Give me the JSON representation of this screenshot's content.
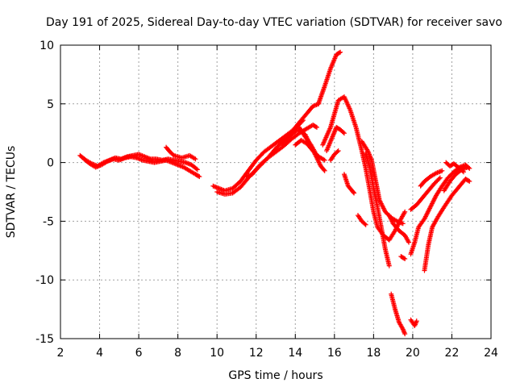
{
  "chart_data": {
    "type": "scatter",
    "title": "Day 191 of 2025, Sidereal Day-to-day VTEC variation (SDTVAR) for receiver savo",
    "xlabel": "GPS time / hours",
    "ylabel": "SDTVAR / TECUs",
    "xlim": [
      2,
      24
    ],
    "ylim": [
      -15,
      10
    ],
    "x_ticks": [
      2,
      4,
      6,
      8,
      10,
      12,
      14,
      16,
      18,
      20,
      22,
      24
    ],
    "y_ticks": [
      -15,
      -10,
      -5,
      0,
      5,
      10
    ],
    "x_tick_labels": [
      "2",
      "4",
      "6",
      "8",
      "10",
      "12",
      "14",
      "16",
      "18",
      "20",
      "22",
      "24"
    ],
    "y_tick_labels": [
      "-15",
      "-10",
      "-5",
      "0",
      "5",
      "10"
    ],
    "grid": true,
    "marker": "+",
    "color": "#ff0000",
    "series": [
      {
        "name": "SDTVAR",
        "segments": [
          [
            [
              3.0,
              0.6
            ],
            [
              3.3,
              0.2
            ],
            [
              3.6,
              -0.1
            ],
            [
              3.9,
              -0.3
            ],
            [
              4.2,
              0.0
            ],
            [
              4.5,
              0.2
            ],
            [
              4.8,
              0.4
            ],
            [
              5.1,
              0.3
            ],
            [
              5.4,
              0.5
            ],
            [
              5.7,
              0.6
            ],
            [
              6.0,
              0.7
            ],
            [
              6.3,
              0.5
            ],
            [
              6.6,
              0.3
            ],
            [
              6.9,
              0.3
            ],
            [
              7.2,
              0.2
            ],
            [
              7.5,
              0.3
            ],
            [
              7.8,
              0.2
            ],
            [
              8.1,
              0.1
            ],
            [
              8.4,
              0.0
            ],
            [
              8.7,
              -0.2
            ],
            [
              9.0,
              -0.6
            ]
          ],
          [
            [
              3.2,
              0.3
            ],
            [
              3.5,
              -0.1
            ],
            [
              3.8,
              -0.4
            ],
            [
              4.1,
              -0.2
            ],
            [
              4.4,
              0.1
            ],
            [
              4.7,
              0.3
            ],
            [
              5.0,
              0.2
            ],
            [
              5.3,
              0.4
            ],
            [
              5.6,
              0.5
            ],
            [
              5.9,
              0.4
            ],
            [
              6.2,
              0.2
            ],
            [
              6.5,
              0.1
            ],
            [
              6.8,
              0.0
            ],
            [
              7.1,
              0.1
            ],
            [
              7.4,
              0.2
            ],
            [
              7.7,
              0.0
            ],
            [
              8.0,
              -0.2
            ],
            [
              8.3,
              -0.4
            ],
            [
              8.6,
              -0.7
            ],
            [
              8.9,
              -1.0
            ],
            [
              9.1,
              -1.2
            ]
          ],
          [
            [
              7.4,
              1.3
            ],
            [
              7.6,
              0.9
            ],
            [
              7.8,
              0.6
            ],
            [
              8.2,
              0.4
            ],
            [
              8.6,
              0.6
            ],
            [
              8.9,
              0.3
            ]
          ],
          [
            [
              9.8,
              -2.0
            ],
            [
              10.1,
              -2.2
            ],
            [
              10.4,
              -2.4
            ],
            [
              10.8,
              -2.2
            ],
            [
              11.2,
              -1.6
            ],
            [
              11.6,
              -0.7
            ],
            [
              12.0,
              0.2
            ],
            [
              12.4,
              0.9
            ],
            [
              12.8,
              1.4
            ],
            [
              13.2,
              1.9
            ],
            [
              13.6,
              2.4
            ],
            [
              14.0,
              2.9
            ],
            [
              14.4,
              3.6
            ]
          ],
          [
            [
              10.0,
              -2.5
            ],
            [
              10.4,
              -2.7
            ],
            [
              10.8,
              -2.6
            ],
            [
              11.2,
              -2.1
            ],
            [
              11.6,
              -1.3
            ],
            [
              12.0,
              -0.6
            ],
            [
              12.3,
              -0.1
            ],
            [
              12.6,
              0.4
            ],
            [
              13.0,
              0.9
            ],
            [
              13.4,
              1.4
            ],
            [
              13.8,
              2.0
            ],
            [
              14.2,
              2.5
            ],
            [
              14.6,
              2.9
            ],
            [
              14.9,
              3.2
            ],
            [
              15.1,
              3.0
            ]
          ],
          [
            [
              11.5,
              -1.2
            ],
            [
              11.8,
              -1.0
            ],
            [
              12.2,
              -0.2
            ],
            [
              12.6,
              0.4
            ],
            [
              13.0,
              1.2
            ],
            [
              13.4,
              1.9
            ],
            [
              13.8,
              2.6
            ],
            [
              14.2,
              3.4
            ],
            [
              14.6,
              4.2
            ],
            [
              14.9,
              4.8
            ],
            [
              15.2,
              5.0
            ]
          ],
          [
            [
              13.3,
              1.6
            ],
            [
              13.7,
              2.2
            ],
            [
              14.1,
              2.8
            ],
            [
              14.5,
              2.4
            ],
            [
              14.8,
              1.4
            ],
            [
              15.1,
              0.4
            ],
            [
              15.3,
              -0.3
            ],
            [
              15.5,
              -0.7
            ]
          ],
          [
            [
              14.0,
              1.5
            ],
            [
              14.3,
              1.9
            ],
            [
              14.6,
              1.6
            ],
            [
              14.9,
              1.0
            ],
            [
              15.2,
              0.5
            ],
            [
              15.5,
              0.2
            ]
          ],
          [
            [
              14.2,
              3.0
            ],
            [
              14.5,
              2.2
            ],
            [
              14.8,
              1.5
            ],
            [
              15.0,
              0.9
            ]
          ],
          [
            [
              15.2,
              5.1
            ],
            [
              15.5,
              6.5
            ],
            [
              15.8,
              8.0
            ],
            [
              16.1,
              9.2
            ],
            [
              16.3,
              9.4
            ]
          ],
          [
            [
              15.4,
              1.5
            ],
            [
              15.8,
              3.0
            ],
            [
              16.2,
              5.3
            ],
            [
              16.5,
              5.6
            ],
            [
              16.8,
              4.5
            ],
            [
              17.1,
              3.0
            ],
            [
              17.4,
              1.0
            ],
            [
              17.6,
              -0.5
            ],
            [
              17.8,
              -2.3
            ],
            [
              18.0,
              -4.2
            ],
            [
              18.2,
              -5.5
            ],
            [
              18.5,
              -6.2
            ],
            [
              18.8,
              -6.6
            ],
            [
              19.1,
              -5.8
            ],
            [
              19.4,
              -4.8
            ],
            [
              19.6,
              -4.2
            ]
          ],
          [
            [
              15.6,
              1.0
            ],
            [
              15.9,
              2.2
            ],
            [
              16.1,
              3.0
            ],
            [
              16.3,
              2.8
            ],
            [
              16.5,
              2.5
            ]
          ],
          [
            [
              15.8,
              0.2
            ],
            [
              16.0,
              0.7
            ],
            [
              16.2,
              1.0
            ]
          ],
          [
            [
              16.5,
              -1.0
            ],
            [
              16.7,
              -2.0
            ],
            [
              16.9,
              -2.4
            ],
            [
              17.0,
              -2.6
            ]
          ],
          [
            [
              17.2,
              -4.5
            ],
            [
              17.4,
              -5.0
            ],
            [
              17.6,
              -5.3
            ]
          ],
          [
            [
              17.4,
              1.8
            ],
            [
              17.7,
              1.0
            ],
            [
              17.9,
              0.2
            ],
            [
              18.1,
              -1.5
            ],
            [
              18.3,
              -3.2
            ],
            [
              18.6,
              -4.2
            ],
            [
              18.9,
              -4.7
            ],
            [
              19.2,
              -5.0
            ],
            [
              19.5,
              -5.2
            ]
          ],
          [
            [
              17.6,
              0.8
            ],
            [
              17.8,
              -0.4
            ],
            [
              18.0,
              -2.2
            ],
            [
              18.2,
              -3.8
            ],
            [
              18.4,
              -5.6
            ],
            [
              18.6,
              -7.4
            ],
            [
              18.8,
              -8.8
            ]
          ],
          [
            [
              18.8,
              -4.5
            ],
            [
              19.0,
              -5.2
            ],
            [
              19.3,
              -5.8
            ],
            [
              19.6,
              -6.2
            ],
            [
              19.8,
              -6.8
            ]
          ],
          [
            [
              18.9,
              -11.2
            ],
            [
              19.1,
              -12.5
            ],
            [
              19.3,
              -13.6
            ],
            [
              19.5,
              -14.2
            ],
            [
              19.6,
              -14.6
            ]
          ],
          [
            [
              19.4,
              -8.0
            ],
            [
              19.6,
              -8.2
            ]
          ],
          [
            [
              19.9,
              -13.4
            ],
            [
              20.1,
              -13.9
            ],
            [
              20.2,
              -13.5
            ]
          ],
          [
            [
              19.9,
              -7.8
            ],
            [
              20.1,
              -6.8
            ],
            [
              20.3,
              -5.5
            ],
            [
              20.6,
              -4.8
            ],
            [
              20.9,
              -3.8
            ],
            [
              21.2,
              -2.8
            ],
            [
              21.5,
              -2.0
            ],
            [
              21.8,
              -1.3
            ],
            [
              22.1,
              -0.8
            ],
            [
              22.4,
              -0.4
            ],
            [
              22.7,
              -0.2
            ],
            [
              22.9,
              -0.5
            ]
          ],
          [
            [
              19.9,
              -4.0
            ],
            [
              20.2,
              -3.6
            ],
            [
              20.5,
              -3.0
            ],
            [
              20.8,
              -2.4
            ],
            [
              21.1,
              -1.8
            ],
            [
              21.4,
              -1.3
            ]
          ],
          [
            [
              20.4,
              -2.0
            ],
            [
              20.6,
              -1.6
            ],
            [
              20.9,
              -1.2
            ],
            [
              21.2,
              -0.9
            ],
            [
              21.5,
              -0.7
            ]
          ],
          [
            [
              20.6,
              -9.2
            ],
            [
              20.8,
              -7.0
            ],
            [
              21.0,
              -5.5
            ],
            [
              21.3,
              -4.6
            ],
            [
              21.6,
              -3.8
            ],
            [
              22.0,
              -2.8
            ],
            [
              22.4,
              -2.0
            ],
            [
              22.7,
              -1.4
            ],
            [
              22.9,
              -1.6
            ]
          ],
          [
            [
              21.6,
              -2.4
            ],
            [
              21.9,
              -1.6
            ],
            [
              22.2,
              -1.0
            ],
            [
              22.5,
              -0.6
            ],
            [
              22.8,
              -0.4
            ]
          ],
          [
            [
              21.7,
              0.0
            ],
            [
              21.9,
              -0.3
            ],
            [
              22.1,
              -0.1
            ],
            [
              22.4,
              -0.5
            ],
            [
              22.6,
              -0.8
            ]
          ]
        ]
      }
    ]
  }
}
